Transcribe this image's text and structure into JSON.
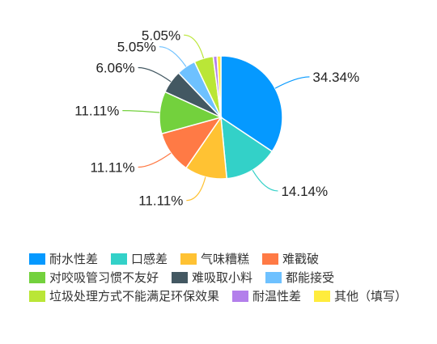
{
  "chart_data": {
    "type": "pie",
    "title": "",
    "legend_position": "bottom-left",
    "series": [
      {
        "name": "耐水性差",
        "value": 34.34,
        "label": "34.34%",
        "color": "#0599ff"
      },
      {
        "name": "口感差",
        "value": 14.14,
        "label": "14.14%",
        "color": "#33d1c8"
      },
      {
        "name": "气味糟糕",
        "value": 11.11,
        "label": "11.11%",
        "color": "#ffc233"
      },
      {
        "name": "难戳破",
        "value": 11.11,
        "label": "11.11%",
        "color": "#ff7a45"
      },
      {
        "name": "对咬吸管习惯不友好",
        "value": 11.11,
        "label": "11.11%",
        "color": "#73d13d"
      },
      {
        "name": "难吸取小料",
        "value": 6.06,
        "label": "6.06%",
        "color": "#435862"
      },
      {
        "name": "都能接受",
        "value": 5.05,
        "label": "5.05%",
        "color": "#6ec1ff"
      },
      {
        "name": "垃圾处理方式不能满足环保效果",
        "value": 5.05,
        "label": "5.05%",
        "color": "#bae637"
      },
      {
        "name": "耐温性差",
        "value": 1.01,
        "label": "",
        "color": "#b37feb"
      },
      {
        "name": "其他（填写）",
        "value": 1.01,
        "label": "",
        "color": "#ffec3d"
      }
    ]
  }
}
